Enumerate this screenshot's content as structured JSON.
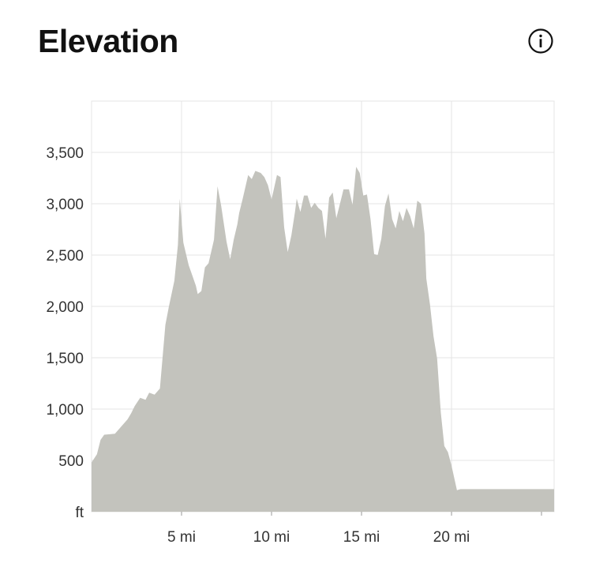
{
  "header": {
    "title": "Elevation",
    "info_icon": "info-circle-icon"
  },
  "chart_data": {
    "type": "area",
    "title": "Elevation",
    "xlabel": "",
    "ylabel": "ft",
    "x_unit": "mi",
    "xlim": [
      0,
      25.7
    ],
    "ylim": [
      0,
      4000
    ],
    "y_ticks": [
      500,
      1000,
      1500,
      2000,
      2500,
      3000,
      3500
    ],
    "y_tick_labels": [
      "500",
      "1,000",
      "1,500",
      "2,000",
      "2,500",
      "3,000",
      "3,500"
    ],
    "y_unit_label": "ft",
    "x_ticks": [
      5,
      10,
      15,
      20
    ],
    "x_tick_labels": [
      "5 mi",
      "10 mi",
      "15 mi",
      "20 mi"
    ],
    "grid": true,
    "colors": {
      "fill": "#c3c3bd",
      "grid": "#e4e4e4",
      "text": "#333333"
    },
    "series": [
      {
        "x": [
          0,
          0.3,
          0.5,
          0.7,
          1.0,
          1.3,
          1.6,
          1.7,
          2.0,
          2.2,
          2.4,
          2.7,
          3.0,
          3.2,
          3.5,
          3.8,
          4.1,
          4.3,
          4.6,
          4.8,
          4.9,
          5.1,
          5.4,
          5.6,
          5.8,
          5.9,
          6.1,
          6.3,
          6.5,
          6.8,
          7.0,
          7.2,
          7.5,
          7.7,
          7.9,
          8.1,
          8.2,
          8.4,
          8.7,
          8.9,
          9.1,
          9.4,
          9.6,
          9.8,
          10.0,
          10.3,
          10.5,
          10.7,
          10.9,
          11.1,
          11.3,
          11.4,
          11.6,
          11.8,
          12.0,
          12.2,
          12.4,
          12.6,
          12.8,
          13.0,
          13.2,
          13.4,
          13.6,
          13.8,
          14.0,
          14.3,
          14.5,
          14.7,
          14.9,
          15.1,
          15.3,
          15.5,
          15.7,
          15.9,
          16.1,
          16.3,
          16.5,
          16.7,
          16.9,
          17.1,
          17.3,
          17.5,
          17.7,
          17.9,
          18.1,
          18.3,
          18.5,
          18.6,
          18.8,
          19.0,
          19.2,
          19.4,
          19.6,
          19.8,
          20.0,
          20.3,
          20.5,
          20.7,
          20.9,
          21.1,
          21.3,
          21.5,
          21.7,
          21.9,
          22.1,
          22.3,
          22.5,
          22.7,
          22.9,
          23.2,
          23.4,
          23.6,
          23.8,
          24.0,
          24.2,
          24.5,
          24.7,
          25.0,
          25.2,
          25.4,
          25.7
        ],
        "y": [
          480,
          560,
          700,
          750,
          755,
          760,
          820,
          840,
          900,
          960,
          1030,
          1110,
          1090,
          1160,
          1140,
          1200,
          1820,
          2000,
          2250,
          2600,
          3050,
          2620,
          2400,
          2300,
          2200,
          2120,
          2150,
          2380,
          2420,
          2650,
          3170,
          2980,
          2630,
          2460,
          2650,
          2800,
          2910,
          3050,
          3280,
          3240,
          3320,
          3300,
          3260,
          3180,
          3040,
          3280,
          3260,
          2770,
          2530,
          2690,
          2920,
          3050,
          2920,
          3080,
          3080,
          2960,
          3010,
          2960,
          2930,
          2660,
          3060,
          3110,
          2860,
          3000,
          3140,
          3140,
          2990,
          3360,
          3300,
          3080,
          3090,
          2850,
          2510,
          2500,
          2660,
          2980,
          3100,
          2850,
          2760,
          2930,
          2830,
          2960,
          2880,
          2760,
          3030,
          3000,
          2710,
          2270,
          2020,
          1710,
          1490,
          970,
          640,
          580,
          450,
          210,
          220,
          220,
          220,
          220,
          220,
          220,
          220,
          220,
          220,
          220,
          220,
          220,
          220,
          220,
          220,
          220,
          220,
          220,
          220,
          220,
          220,
          220,
          220,
          220,
          220
        ]
      }
    ]
  }
}
